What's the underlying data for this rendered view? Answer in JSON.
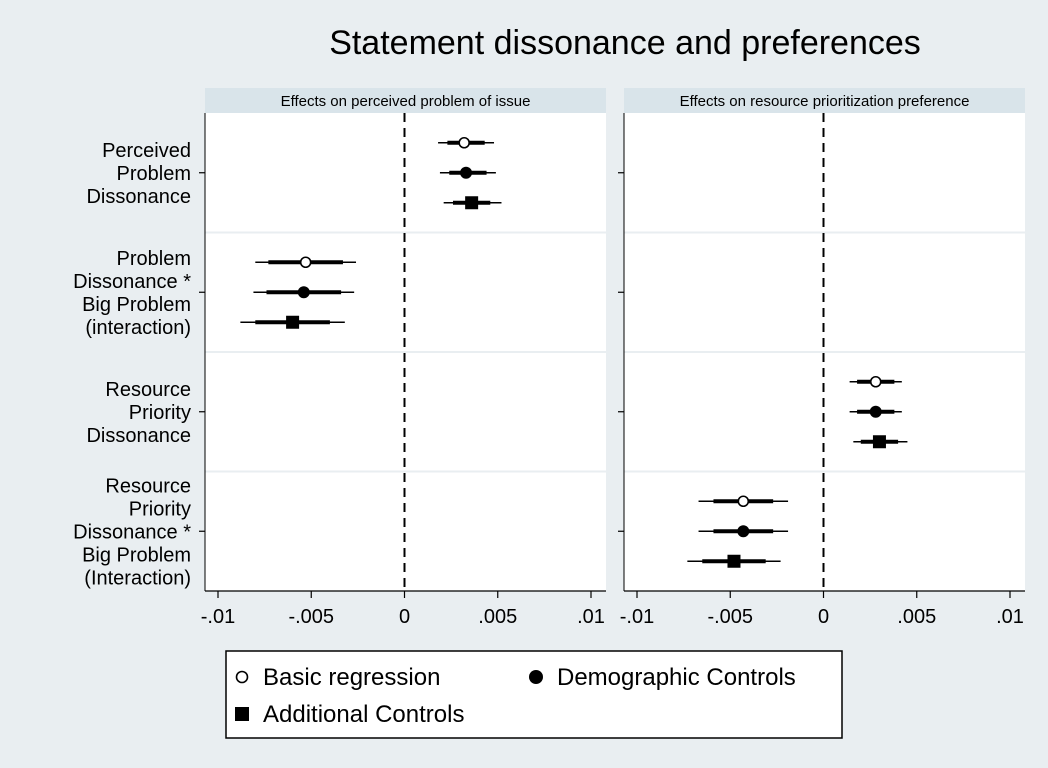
{
  "chart_data": {
    "type": "scatter",
    "title": "Statement dissonance and preferences",
    "panels": [
      {
        "name": "Effects on perceived problem of issue"
      },
      {
        "name": "Effects on resource prioritization preference"
      }
    ],
    "rows": [
      {
        "label_lines": [
          "Perceived",
          "Problem",
          "Dissonance"
        ]
      },
      {
        "label_lines": [
          "Problem",
          "Dissonance *",
          "Big Problem",
          "(interaction)"
        ]
      },
      {
        "label_lines": [
          "Resource",
          "Priority",
          "Dissonance"
        ]
      },
      {
        "label_lines": [
          "Resource",
          "Priority",
          "Dissonance *",
          "Big Problem",
          "(Interaction)"
        ]
      }
    ],
    "xlim": [
      -0.011,
      0.011
    ],
    "xticks": [
      -0.01,
      -0.005,
      0,
      0.005,
      0.01
    ],
    "xtick_labels": [
      "-.01",
      "-.005",
      "0",
      ".005",
      ".01"
    ],
    "reference_line": 0,
    "series": [
      {
        "name": "Basic regression",
        "marker": "hollow-circle"
      },
      {
        "name": "Demographic Controls",
        "marker": "filled-circle"
      },
      {
        "name": "Additional Controls",
        "marker": "filled-square"
      }
    ],
    "estimates": [
      {
        "panel": 0,
        "row": 0,
        "series": 0,
        "est": 0.0032,
        "ci90": [
          0.0023,
          0.0043
        ],
        "ci95": [
          0.0018,
          0.0048
        ]
      },
      {
        "panel": 0,
        "row": 0,
        "series": 1,
        "est": 0.0033,
        "ci90": [
          0.0024,
          0.0044
        ],
        "ci95": [
          0.0019,
          0.0049
        ]
      },
      {
        "panel": 0,
        "row": 0,
        "series": 2,
        "est": 0.0036,
        "ci90": [
          0.0026,
          0.0046
        ],
        "ci95": [
          0.0021,
          0.0052
        ]
      },
      {
        "panel": 0,
        "row": 1,
        "series": 0,
        "est": -0.0053,
        "ci90": [
          -0.0073,
          -0.0033
        ],
        "ci95": [
          -0.008,
          -0.0026
        ]
      },
      {
        "panel": 0,
        "row": 1,
        "series": 1,
        "est": -0.0054,
        "ci90": [
          -0.0074,
          -0.0034
        ],
        "ci95": [
          -0.0081,
          -0.0027
        ]
      },
      {
        "panel": 0,
        "row": 1,
        "series": 2,
        "est": -0.006,
        "ci90": [
          -0.008,
          -0.004
        ],
        "ci95": [
          -0.0088,
          -0.0032
        ]
      },
      {
        "panel": 1,
        "row": 2,
        "series": 0,
        "est": 0.0028,
        "ci90": [
          0.0018,
          0.0038
        ],
        "ci95": [
          0.0014,
          0.0042
        ]
      },
      {
        "panel": 1,
        "row": 2,
        "series": 1,
        "est": 0.0028,
        "ci90": [
          0.0018,
          0.0038
        ],
        "ci95": [
          0.0014,
          0.0042
        ]
      },
      {
        "panel": 1,
        "row": 2,
        "series": 2,
        "est": 0.003,
        "ci90": [
          0.002,
          0.004
        ],
        "ci95": [
          0.0016,
          0.0045
        ]
      },
      {
        "panel": 1,
        "row": 3,
        "series": 0,
        "est": -0.0043,
        "ci90": [
          -0.0059,
          -0.0027
        ],
        "ci95": [
          -0.0067,
          -0.0019
        ]
      },
      {
        "panel": 1,
        "row": 3,
        "series": 1,
        "est": -0.0043,
        "ci90": [
          -0.0059,
          -0.0027
        ],
        "ci95": [
          -0.0067,
          -0.0019
        ]
      },
      {
        "panel": 1,
        "row": 3,
        "series": 2,
        "est": -0.0048,
        "ci90": [
          -0.0065,
          -0.0031
        ],
        "ci95": [
          -0.0073,
          -0.0023
        ]
      }
    ],
    "legend": {
      "position": "bottom",
      "columns": 2
    },
    "grid": "horizontal row separators",
    "colors": {
      "background": "#e9eef1",
      "panel": "#ffffff",
      "strip": "#d9e4ea",
      "marks": "#000000",
      "separator": "#e9eef1"
    }
  }
}
